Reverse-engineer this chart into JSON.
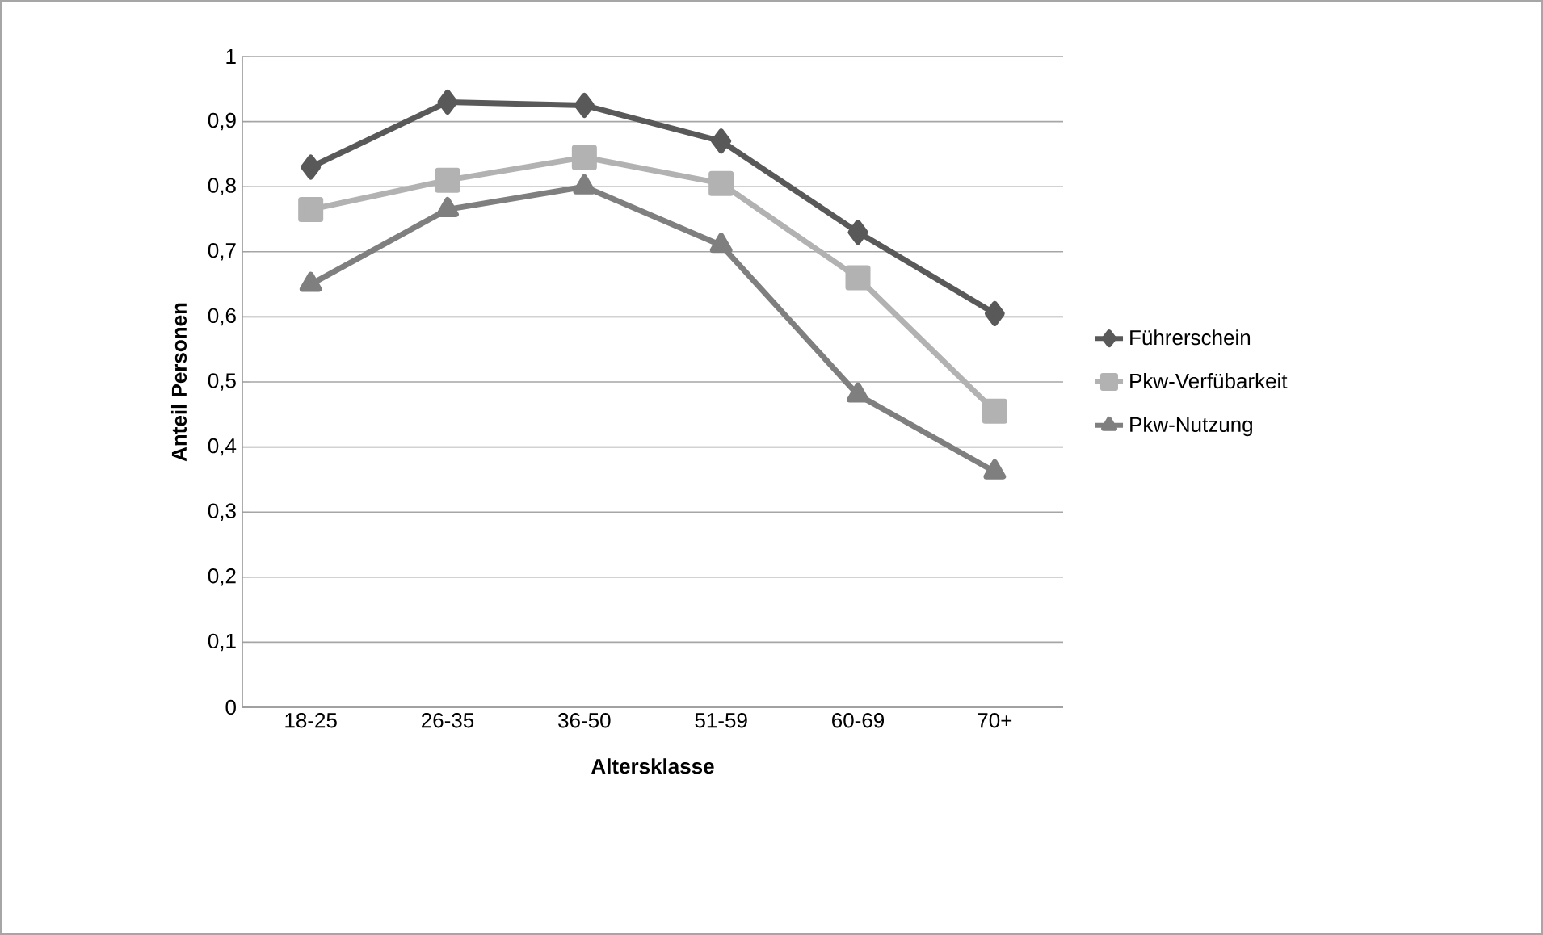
{
  "chart_data": {
    "type": "line",
    "xlabel": "Altersklasse",
    "ylabel": "Anteil Personen",
    "categories": [
      "18-25",
      "26-35",
      "36-50",
      "51-59",
      "60-69",
      "70+"
    ],
    "series": [
      {
        "name": "Führerschein",
        "color": "#595959",
        "marker": "diamond",
        "values": [
          0.83,
          0.93,
          0.925,
          0.87,
          0.73,
          0.605
        ]
      },
      {
        "name": "Pkw-Verfübarkeit",
        "color": "#b2b2b2",
        "marker": "square",
        "values": [
          0.765,
          0.81,
          0.845,
          0.805,
          0.66,
          0.455
        ]
      },
      {
        "name": "Pkw-Nutzung",
        "color": "#7f7f7f",
        "marker": "triangle",
        "values": [
          0.65,
          0.765,
          0.8,
          0.71,
          0.48,
          0.362
        ]
      }
    ],
    "ylim": [
      0,
      1
    ],
    "yticks": [
      0,
      {
        "value": 0.1,
        "label": "0,1"
      },
      {
        "value": 0.2,
        "label": "0,2"
      },
      {
        "value": 0.3,
        "label": "0,3"
      },
      {
        "value": 0.4,
        "label": "0,4"
      },
      {
        "value": 0.5,
        "label": "0,5"
      },
      {
        "value": 0.6,
        "label": "0,6"
      },
      {
        "value": 0.7,
        "label": "0,7"
      },
      {
        "value": 0.8,
        "label": "0,8"
      },
      {
        "value": 0.9,
        "label": "0,9"
      },
      1
    ],
    "grid": "y",
    "legend": "right",
    "line_style": "solid"
  }
}
